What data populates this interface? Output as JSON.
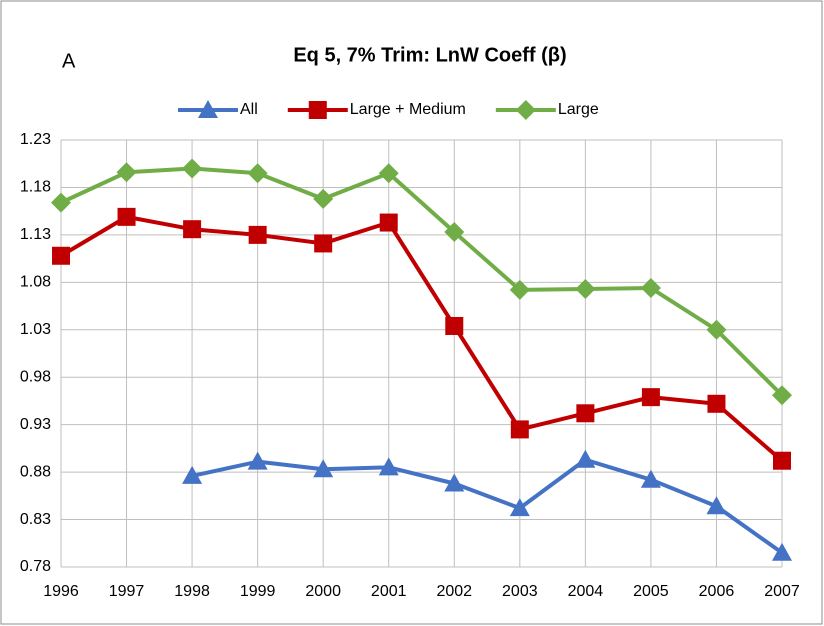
{
  "chart_data": {
    "type": "line",
    "panel_label": "A",
    "title": "Eq 5, 7% Trim: LnW Coeff (β)",
    "categories": [
      "1996",
      "1997",
      "1998",
      "1999",
      "2000",
      "2001",
      "2002",
      "2003",
      "2004",
      "2005",
      "2006",
      "2007"
    ],
    "series": [
      {
        "name": "All",
        "color": "#4472c4",
        "marker": "triangle",
        "values": [
          null,
          null,
          0.876,
          0.891,
          0.883,
          0.885,
          0.868,
          0.842,
          0.893,
          0.872,
          0.844,
          0.795
        ]
      },
      {
        "name": "Large + Medium",
        "color": "#c00000",
        "marker": "square",
        "values": [
          1.108,
          1.149,
          1.136,
          1.13,
          1.121,
          1.143,
          1.034,
          0.925,
          0.942,
          0.959,
          0.952,
          0.892
        ]
      },
      {
        "name": "Large",
        "color": "#70ad47",
        "marker": "diamond",
        "values": [
          1.164,
          1.196,
          1.2,
          1.195,
          1.168,
          1.195,
          1.133,
          1.072,
          1.073,
          1.074,
          1.03,
          0.961
        ]
      }
    ],
    "ylim": [
      0.78,
      1.23
    ],
    "yticks": [
      0.78,
      0.83,
      0.88,
      0.93,
      0.98,
      1.03,
      1.08,
      1.13,
      1.18,
      1.23
    ],
    "grid": true,
    "legend": "top"
  }
}
